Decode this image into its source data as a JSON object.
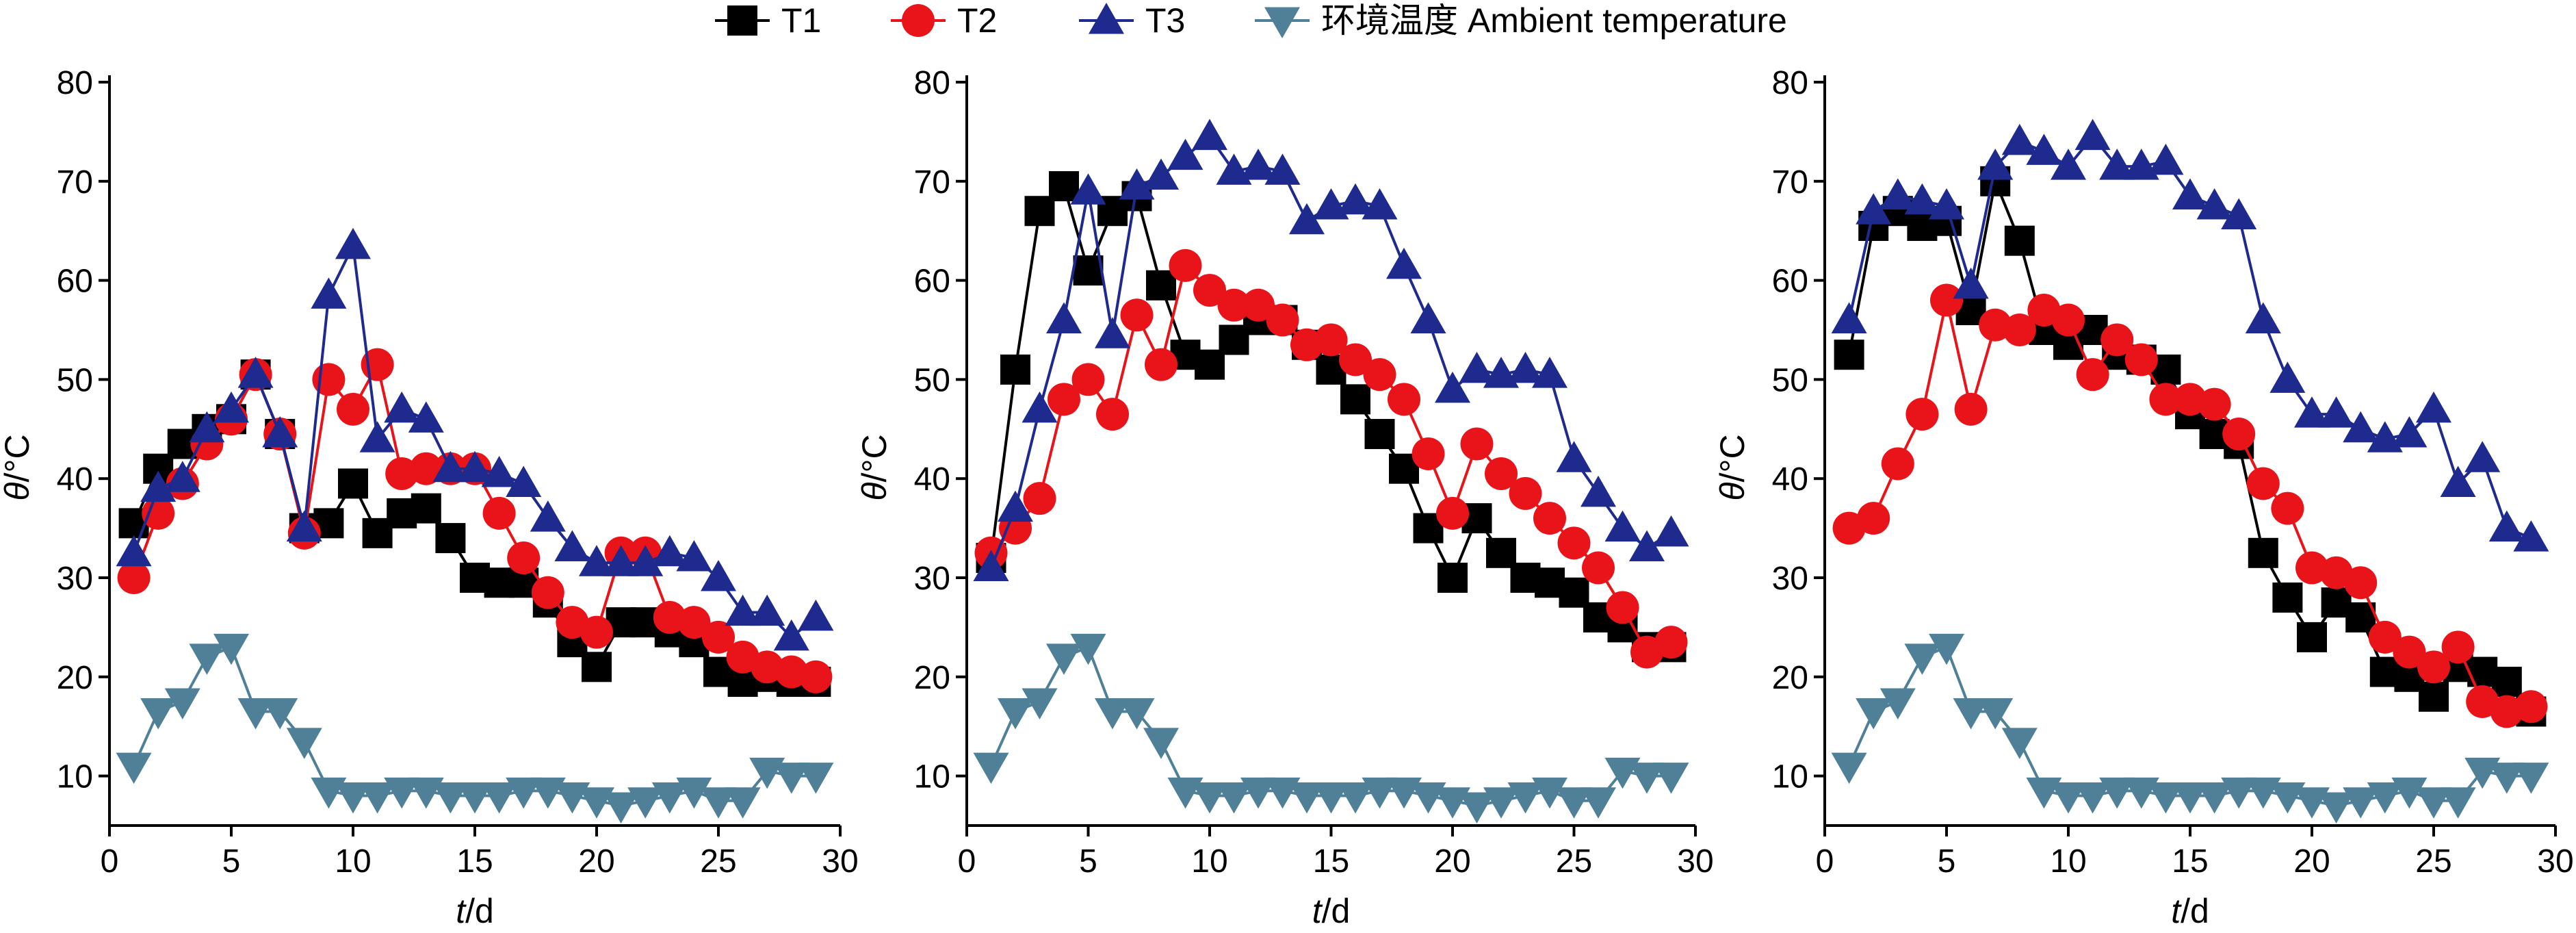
{
  "chart_data": [
    {
      "type": "line",
      "xlabel_var": "t",
      "xlabel_unit": "/d",
      "ylabel_var": "θ",
      "ylabel_unit": "/°C",
      "xlim": [
        0,
        30
      ],
      "ylim": [
        5,
        80
      ],
      "xticks": [
        0,
        5,
        10,
        15,
        20,
        25,
        30
      ],
      "yticks": [
        10,
        20,
        30,
        40,
        50,
        60,
        70,
        80
      ],
      "grid": false,
      "series": [
        {
          "name": "T1",
          "color": "#000000",
          "marker": "square",
          "x": [
            1,
            2,
            3,
            4,
            5,
            6,
            7,
            8,
            9,
            10,
            11,
            12,
            13,
            14,
            15,
            16,
            17,
            18,
            19,
            20,
            21,
            22,
            23,
            24,
            25,
            26,
            27,
            28,
            29
          ],
          "y": [
            35.5,
            41,
            43.5,
            45,
            46,
            50.5,
            44.5,
            35,
            35.5,
            39.5,
            34.5,
            36.5,
            37,
            34,
            30,
            29.5,
            29.5,
            27.5,
            23.5,
            21,
            25.5,
            25.5,
            24.5,
            23.5,
            20.5,
            19.5,
            20,
            19.5,
            19.5
          ]
        },
        {
          "name": "T2",
          "color": "#e8141a",
          "marker": "circle",
          "x": [
            1,
            2,
            3,
            4,
            5,
            6,
            7,
            8,
            9,
            10,
            11,
            12,
            13,
            14,
            15,
            16,
            17,
            18,
            19,
            20,
            21,
            22,
            23,
            24,
            25,
            26,
            27,
            28,
            29
          ],
          "y": [
            30,
            36.5,
            39.5,
            43.5,
            46,
            50.5,
            44.5,
            34.5,
            50,
            47,
            51.5,
            40.5,
            41,
            41,
            41,
            36.5,
            32,
            28.5,
            25.5,
            24.5,
            32.5,
            32.5,
            26,
            25.5,
            24,
            22,
            21,
            20.5,
            20
          ]
        },
        {
          "name": "T3",
          "color": "#1f2a8f",
          "marker": "triangle-up",
          "x": [
            1,
            2,
            3,
            4,
            5,
            6,
            7,
            8,
            9,
            10,
            11,
            12,
            13,
            14,
            15,
            16,
            17,
            18,
            19,
            20,
            21,
            22,
            23,
            24,
            25,
            26,
            27,
            28,
            29
          ],
          "y": [
            32.5,
            39,
            40,
            45,
            47,
            50.5,
            44.5,
            35,
            58.5,
            63.5,
            44,
            47,
            46,
            41,
            41,
            40.5,
            39.5,
            36,
            33,
            31.5,
            31.5,
            31.5,
            32.5,
            32,
            30,
            26.5,
            26.5,
            24,
            26
          ]
        },
        {
          "name": "环境温度 Ambient temperature",
          "color": "#4f8098",
          "marker": "triangle-down",
          "x": [
            1,
            2,
            3,
            4,
            5,
            6,
            7,
            8,
            9,
            10,
            11,
            12,
            13,
            14,
            15,
            16,
            17,
            18,
            19,
            20,
            21,
            22,
            23,
            24,
            25,
            26,
            27,
            28,
            29
          ],
          "y": [
            11,
            16.5,
            17.5,
            22,
            23,
            16.5,
            16.5,
            13.5,
            8.5,
            8,
            8,
            8.5,
            8.5,
            8,
            8,
            8,
            8.5,
            8.5,
            8,
            7.5,
            7,
            7.5,
            8,
            8.5,
            7.5,
            7.5,
            10.5,
            10,
            10
          ]
        }
      ]
    },
    {
      "type": "line",
      "xlabel_var": "t",
      "xlabel_unit": "/d",
      "ylabel_var": "θ",
      "ylabel_unit": "/°C",
      "xlim": [
        0,
        30
      ],
      "ylim": [
        5,
        80
      ],
      "xticks": [
        0,
        5,
        10,
        15,
        20,
        25,
        30
      ],
      "yticks": [
        10,
        20,
        30,
        40,
        50,
        60,
        70,
        80
      ],
      "grid": false,
      "series": [
        {
          "name": "T1",
          "color": "#000000",
          "marker": "square",
          "x": [
            1,
            2,
            3,
            4,
            5,
            6,
            7,
            8,
            9,
            10,
            11,
            12,
            13,
            14,
            15,
            16,
            17,
            18,
            19,
            20,
            21,
            22,
            23,
            24,
            25,
            26,
            27,
            28,
            29
          ],
          "y": [
            32,
            51,
            67,
            69.5,
            61,
            67,
            68.5,
            59.5,
            52.5,
            51.5,
            54,
            56,
            56,
            53.5,
            51,
            48,
            44.5,
            41,
            35,
            30,
            36,
            32.5,
            30,
            29.5,
            28.5,
            26,
            25,
            23,
            23
          ]
        },
        {
          "name": "T2",
          "color": "#e8141a",
          "marker": "circle",
          "x": [
            1,
            2,
            3,
            4,
            5,
            6,
            7,
            8,
            9,
            10,
            11,
            12,
            13,
            14,
            15,
            16,
            17,
            18,
            19,
            20,
            21,
            22,
            23,
            24,
            25,
            26,
            27,
            28,
            29
          ],
          "y": [
            32.5,
            35,
            38,
            48,
            50,
            46.5,
            56.5,
            51.5,
            61.5,
            59,
            57.5,
            57.5,
            56,
            53.5,
            54,
            52,
            50.5,
            48,
            42.5,
            36.5,
            43.5,
            40.5,
            38.5,
            36,
            33.5,
            31,
            27,
            22.5,
            23.5
          ]
        },
        {
          "name": "T3",
          "color": "#1f2a8f",
          "marker": "triangle-up",
          "x": [
            1,
            2,
            3,
            4,
            5,
            6,
            7,
            8,
            9,
            10,
            11,
            12,
            13,
            14,
            15,
            16,
            17,
            18,
            19,
            20,
            21,
            22,
            23,
            24,
            25,
            26,
            27,
            28,
            29
          ],
          "y": [
            31,
            37,
            47,
            56,
            69,
            54.5,
            69.5,
            70.5,
            72.5,
            74.5,
            71,
            71.5,
            71,
            66,
            67.5,
            68,
            67.5,
            61.5,
            56,
            49,
            51,
            50.5,
            51,
            50.5,
            42,
            38.5,
            35,
            33,
            34.5
          ]
        },
        {
          "name": "环境温度 Ambient temperature",
          "color": "#4f8098",
          "marker": "triangle-down",
          "x": [
            1,
            2,
            3,
            4,
            5,
            6,
            7,
            8,
            9,
            10,
            11,
            12,
            13,
            14,
            15,
            16,
            17,
            18,
            19,
            20,
            21,
            22,
            23,
            24,
            25,
            26,
            27,
            28,
            29
          ],
          "y": [
            11,
            16.5,
            17.5,
            22,
            23,
            16.5,
            16.5,
            13.5,
            8.5,
            8,
            8,
            8.5,
            8.5,
            8,
            8,
            8,
            8.5,
            8.5,
            8,
            7.5,
            7,
            7.5,
            8,
            8.5,
            7.5,
            7.5,
            10.5,
            10,
            10
          ]
        }
      ]
    },
    {
      "type": "line",
      "xlabel_var": "t",
      "xlabel_unit": "/d",
      "ylabel_var": "θ",
      "ylabel_unit": "/°C",
      "xlim": [
        0,
        30
      ],
      "ylim": [
        5,
        80
      ],
      "xticks": [
        0,
        5,
        10,
        15,
        20,
        25,
        30
      ],
      "yticks": [
        10,
        20,
        30,
        40,
        50,
        60,
        70,
        80
      ],
      "grid": false,
      "series": [
        {
          "name": "T1",
          "color": "#000000",
          "marker": "square",
          "x": [
            1,
            2,
            3,
            4,
            5,
            6,
            7,
            8,
            9,
            10,
            11,
            12,
            13,
            14,
            15,
            16,
            17,
            18,
            19,
            20,
            21,
            22,
            23,
            24,
            25,
            26,
            27,
            28,
            29
          ],
          "y": [
            52.5,
            65.5,
            67,
            65.5,
            66,
            57,
            70,
            64,
            55,
            53.5,
            55,
            52.5,
            52,
            51,
            46.5,
            44.5,
            43.5,
            32.5,
            28,
            24,
            27.5,
            26,
            20.5,
            20,
            18,
            21,
            20.5,
            19.5,
            16.5
          ]
        },
        {
          "name": "T2",
          "color": "#e8141a",
          "marker": "circle",
          "x": [
            1,
            2,
            3,
            4,
            5,
            6,
            7,
            8,
            9,
            10,
            11,
            12,
            13,
            14,
            15,
            16,
            17,
            18,
            19,
            20,
            21,
            22,
            23,
            24,
            25,
            26,
            27,
            28,
            29
          ],
          "y": [
            35,
            36,
            41.5,
            46.5,
            58,
            47,
            55.5,
            55,
            57,
            56,
            50.5,
            54,
            52,
            48,
            48,
            47.5,
            44.5,
            39.5,
            37,
            31,
            30.5,
            29.5,
            24,
            22.5,
            21,
            23,
            17.5,
            16.5,
            17
          ]
        },
        {
          "name": "T3",
          "color": "#1f2a8f",
          "marker": "triangle-up",
          "x": [
            1,
            2,
            3,
            4,
            5,
            6,
            7,
            8,
            9,
            10,
            11,
            12,
            13,
            14,
            15,
            16,
            17,
            18,
            19,
            20,
            21,
            22,
            23,
            24,
            25,
            26,
            27,
            28,
            29
          ],
          "y": [
            56,
            67,
            68.5,
            68,
            67.5,
            59.5,
            71.5,
            74,
            73,
            71.5,
            74.5,
            71.5,
            71.5,
            72,
            68.5,
            67.5,
            66.5,
            56,
            50,
            46.5,
            46.5,
            45,
            44,
            44.5,
            47,
            39.5,
            42,
            35,
            34
          ]
        },
        {
          "name": "环境温度 Ambient temperature",
          "color": "#4f8098",
          "marker": "triangle-down",
          "x": [
            1,
            2,
            3,
            4,
            5,
            6,
            7,
            8,
            9,
            10,
            11,
            12,
            13,
            14,
            15,
            16,
            17,
            18,
            19,
            20,
            21,
            22,
            23,
            24,
            25,
            26,
            27,
            28,
            29
          ],
          "y": [
            11,
            16.5,
            17.5,
            22,
            23,
            16.5,
            16.5,
            13.5,
            8.5,
            8,
            8,
            8.5,
            8.5,
            8,
            8,
            8,
            8.5,
            8.5,
            8,
            7.5,
            7,
            7.5,
            8,
            8.5,
            7.5,
            7.5,
            10.5,
            10,
            10
          ]
        }
      ]
    }
  ],
  "legend": {
    "placement": "top-center",
    "items": [
      {
        "label": "T1",
        "color": "#000000",
        "marker": "square"
      },
      {
        "label": "T2",
        "color": "#e8141a",
        "marker": "circle"
      },
      {
        "label": "T3",
        "color": "#1f2a8f",
        "marker": "triangle-up"
      },
      {
        "label": "环境温度 Ambient temperature",
        "color": "#4f8098",
        "marker": "triangle-down"
      }
    ]
  }
}
